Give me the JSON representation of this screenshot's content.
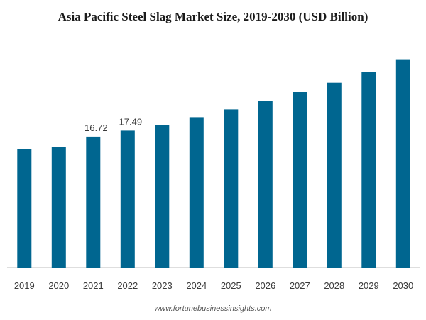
{
  "chart_data": {
    "type": "bar",
    "title": "Asia Pacific Steel Slag Market Size, 2019-2030 (USD Billion)",
    "categories": [
      "2019",
      "2020",
      "2021",
      "2022",
      "2023",
      "2024",
      "2025",
      "2026",
      "2027",
      "2028",
      "2029",
      "2030"
    ],
    "values": [
      15.1,
      15.4,
      16.72,
      17.49,
      18.2,
      19.2,
      20.2,
      21.3,
      22.4,
      23.6,
      25.0,
      26.5
    ],
    "data_labels": [
      null,
      null,
      "16.72",
      "17.49",
      null,
      null,
      null,
      null,
      null,
      null,
      null,
      null
    ],
    "ylim": [
      0,
      28
    ],
    "xlabel": "",
    "ylabel": "",
    "grid": false,
    "bar_color": "#006690"
  },
  "source": "www.fortunebusinessinsights.com"
}
